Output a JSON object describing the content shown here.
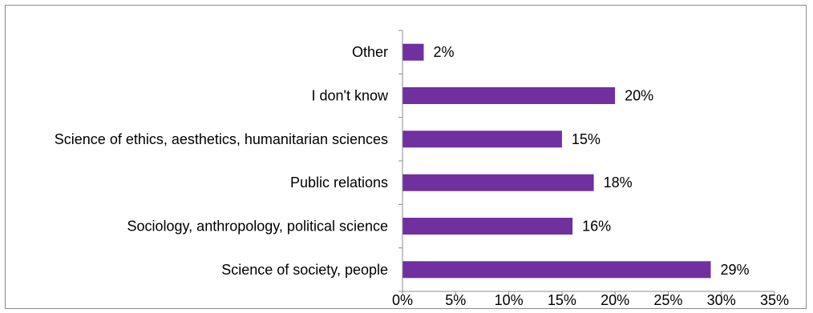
{
  "chart_data": {
    "type": "bar",
    "orientation": "horizontal",
    "categories": [
      "Science of society, people",
      "Sociology, anthropology, political science",
      "Public relations",
      "Science of ethics, aesthetics, humanitarian sciences",
      "I don't know",
      "Other"
    ],
    "values": [
      29,
      16,
      18,
      15,
      20,
      2
    ],
    "value_labels": [
      "29%",
      "16%",
      "18%",
      "15%",
      "20%",
      "2%"
    ],
    "xlim": [
      0,
      35
    ],
    "xticks": [
      0,
      5,
      10,
      15,
      20,
      25,
      30,
      35
    ],
    "xtick_labels": [
      "0%",
      "5%",
      "10%",
      "15%",
      "20%",
      "25%",
      "30%",
      "35%"
    ],
    "title": "",
    "xlabel": "",
    "ylabel": "",
    "grid": false,
    "legend": "none",
    "colors": {
      "bar": "#7030a0",
      "axis": "#8c8c8c",
      "frame": "#8c8c8c"
    }
  }
}
